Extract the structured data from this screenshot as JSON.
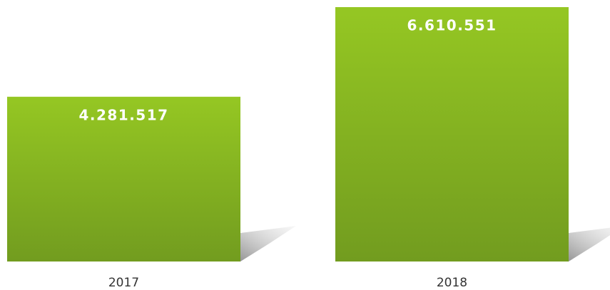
{
  "chart_data": {
    "type": "bar",
    "categories": [
      "2017",
      "2018"
    ],
    "values": [
      4281517,
      6610551
    ],
    "value_labels": [
      "4.281.517",
      "6.610.551"
    ],
    "color": "#85b021"
  }
}
